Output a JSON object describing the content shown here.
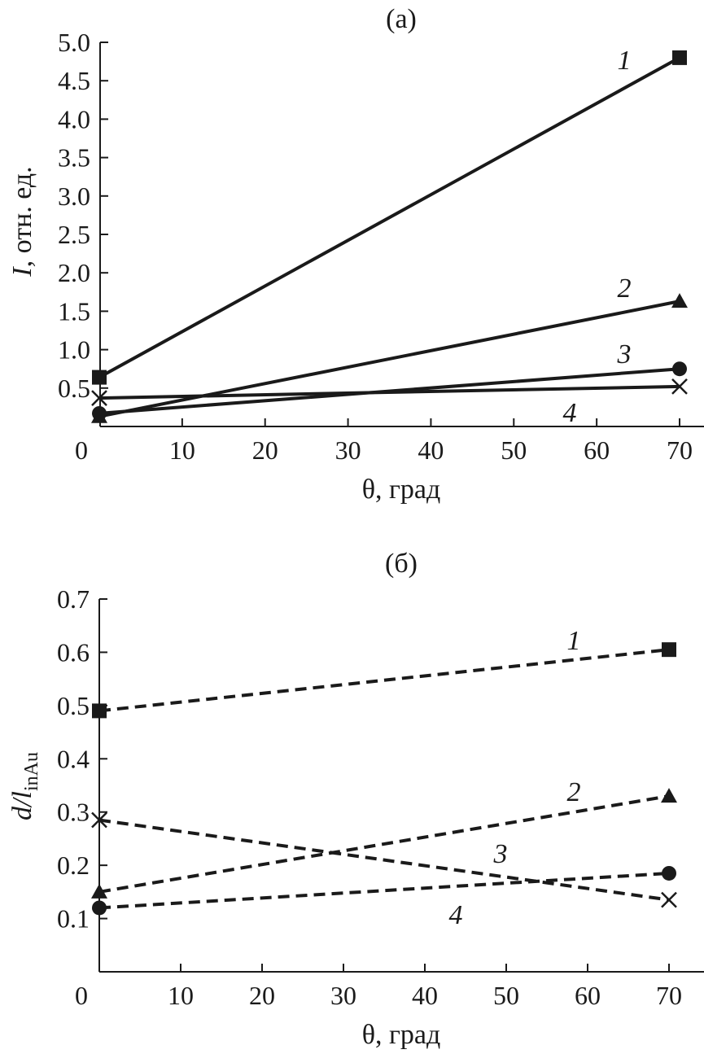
{
  "chart_data": [
    {
      "type": "line",
      "title": "(а)",
      "xlabel": "θ, град",
      "ylabel": "I, отн. ед.",
      "xlim": [
        0,
        75
      ],
      "ylim": [
        0,
        5.0
      ],
      "xticks": [
        0,
        10,
        20,
        30,
        40,
        50,
        60,
        70
      ],
      "yticks": [
        0.5,
        1.0,
        1.5,
        2.0,
        2.5,
        3.0,
        3.5,
        4.0,
        4.5,
        5.0
      ],
      "xtick_labels": [
        "0",
        "10",
        "20",
        "30",
        "40",
        "50",
        "60",
        "70"
      ],
      "ytick_labels": [
        "0.5",
        "1.0",
        "1.5",
        "2.0",
        "2.5",
        "3.0",
        "3.5",
        "4.0",
        "4.5",
        "5.0"
      ],
      "grid": false,
      "line_style": "solid",
      "series": [
        {
          "name": "1",
          "marker": "square",
          "x": [
            0,
            70
          ],
          "y": [
            0.64,
            4.8
          ]
        },
        {
          "name": "2",
          "marker": "triangle",
          "x": [
            0,
            70
          ],
          "y": [
            0.13,
            1.63
          ]
        },
        {
          "name": "3",
          "marker": "circle",
          "x": [
            0,
            70
          ],
          "y": [
            0.17,
            0.75
          ]
        },
        {
          "name": "4",
          "marker": "cross",
          "x": [
            0,
            70
          ],
          "y": [
            0.37,
            0.52
          ]
        }
      ]
    },
    {
      "type": "line",
      "title": "(б)",
      "xlabel": "θ, град",
      "ylabel": "d/l",
      "ylabel_subscript": "inAu",
      "xlim": [
        0,
        73
      ],
      "ylim": [
        0.0,
        0.7
      ],
      "xticks": [
        0,
        10,
        20,
        30,
        40,
        50,
        60,
        70
      ],
      "yticks": [
        0.1,
        0.2,
        0.3,
        0.4,
        0.5,
        0.6,
        0.7
      ],
      "xtick_labels": [
        "0",
        "10",
        "20",
        "30",
        "40",
        "50",
        "60",
        "70"
      ],
      "ytick_labels": [
        "0.1",
        "0.2",
        "0.3",
        "0.4",
        "0.5",
        "0.6",
        "0.7"
      ],
      "grid": false,
      "line_style": "dashed",
      "series": [
        {
          "name": "1",
          "marker": "square",
          "x": [
            0,
            70
          ],
          "y": [
            0.49,
            0.605
          ]
        },
        {
          "name": "2",
          "marker": "triangle",
          "x": [
            0,
            70
          ],
          "y": [
            0.15,
            0.33
          ]
        },
        {
          "name": "3",
          "marker": "circle",
          "x": [
            0,
            70
          ],
          "y": [
            0.12,
            0.185
          ]
        },
        {
          "name": "4",
          "marker": "cross",
          "x": [
            0,
            70
          ],
          "y": [
            0.285,
            0.135
          ]
        }
      ]
    }
  ]
}
